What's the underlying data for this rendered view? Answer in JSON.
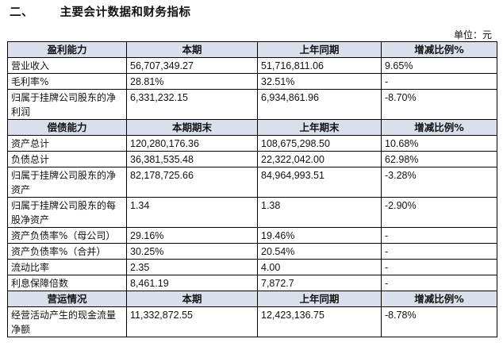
{
  "section": {
    "number": "二、",
    "title": "主要会计数据和财务指标"
  },
  "unit": "单位：元",
  "table": {
    "groups": [
      {
        "header": [
          "盈利能力",
          "本期",
          "上年同期",
          "增减比例%"
        ],
        "rows": [
          [
            "营业收入",
            "56,707,349.27",
            "51,716,811.06",
            "9.65%"
          ],
          [
            "毛利率%",
            "28.81%",
            "32.51%",
            "-"
          ],
          [
            "归属于挂牌公司股东的净利润",
            "6,331,232.15",
            "6,934,861.96",
            "-8.70%"
          ]
        ]
      },
      {
        "header": [
          "偿债能力",
          "本期期末",
          "上年期末",
          "增减比例%"
        ],
        "rows": [
          [
            "资产总计",
            "120,280,176.36",
            "108,675,298.50",
            "10.68%"
          ],
          [
            "负债总计",
            "36,381,535.48",
            "22,322,042.00",
            "62.98%"
          ],
          [
            "归属于挂牌公司股东的净资产",
            "82,178,725.66",
            "84,964,993.51",
            "-3.28%"
          ],
          [
            "归属于挂牌公司股东的每股净资产",
            "1.34",
            "1.38",
            "-2.90%"
          ],
          [
            "资产负债率%（母公司）",
            "29.16%",
            "19.46%",
            "-"
          ],
          [
            "资产负债率%（合并）",
            "30.25%",
            "20.54%",
            "-"
          ],
          [
            "流动比率",
            "2.35",
            "4.00",
            "-"
          ],
          [
            "利息保障倍数",
            "8,461.19",
            "7,872.7",
            "-"
          ]
        ]
      },
      {
        "header": [
          "营运情况",
          "本期",
          "上年同期",
          "增减比例%"
        ],
        "rows": [
          [
            "经营活动产生的现金流量净额",
            "11,332,872.55",
            "12,423,136.75",
            "-8.78%"
          ]
        ]
      }
    ]
  }
}
